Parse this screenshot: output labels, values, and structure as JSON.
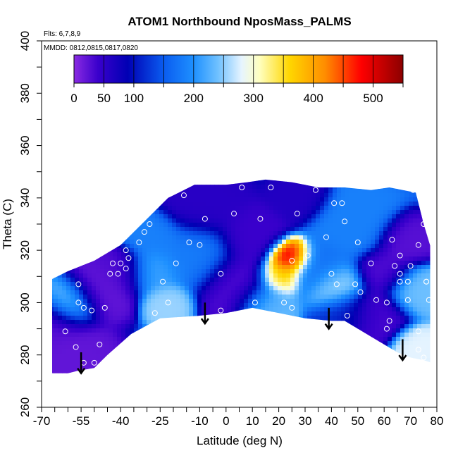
{
  "chart_data": {
    "type": "heatmap",
    "title": "ATOM1 Northbound NposMass_PALMS",
    "annotations": {
      "flights": "Flts: 6,7,8,9",
      "dates": "MMDD: 0812,0815,0817,0820"
    },
    "xlabel": "Latitude (deg N)",
    "ylabel": "Theta (C)",
    "xlim": [
      -70,
      80
    ],
    "ylim": [
      260,
      400
    ],
    "x_ticks": [
      -70,
      -55,
      -40,
      -25,
      -10,
      0,
      10,
      20,
      30,
      40,
      50,
      60,
      70,
      80
    ],
    "x_tick_labels": [
      "-70",
      "-55",
      "-40",
      "-25",
      "-10",
      "0",
      "10",
      "20",
      "30",
      "40",
      "50",
      "60",
      "70",
      "80"
    ],
    "y_ticks": [
      260,
      280,
      300,
      320,
      340,
      360,
      380,
      400
    ],
    "y_tick_labels": [
      "260",
      "280",
      "300",
      "320",
      "340",
      "360",
      "380",
      "400"
    ],
    "colorbar": {
      "range": [
        0,
        550
      ],
      "ticks": [
        0,
        50,
        100,
        200,
        300,
        400,
        500
      ],
      "tick_labels": [
        "0",
        "50",
        "100",
        "200",
        "300",
        "400",
        "500"
      ],
      "color_stops": [
        {
          "value": 0,
          "color": "#8a2be2"
        },
        {
          "value": 40,
          "color": "#3a00cc"
        },
        {
          "value": 90,
          "color": "#0000b4"
        },
        {
          "value": 150,
          "color": "#0a5cf0"
        },
        {
          "value": 200,
          "color": "#1e90ff"
        },
        {
          "value": 240,
          "color": "#6ec0ff"
        },
        {
          "value": 280,
          "color": "#e6f4ff"
        },
        {
          "value": 310,
          "color": "#ffffc0"
        },
        {
          "value": 360,
          "color": "#ffd700"
        },
        {
          "value": 420,
          "color": "#ff8c00"
        },
        {
          "value": 480,
          "color": "#ff0000"
        },
        {
          "value": 550,
          "color": "#8b0000"
        }
      ]
    },
    "domain": {
      "lower": [
        [
          -66,
          273
        ],
        [
          -60,
          273
        ],
        [
          -56,
          274
        ],
        [
          -50,
          275
        ],
        [
          -45,
          280
        ],
        [
          -36,
          288
        ],
        [
          -25,
          294
        ],
        [
          -10,
          295
        ],
        [
          0,
          296
        ],
        [
          10,
          298
        ],
        [
          20,
          296
        ],
        [
          30,
          294
        ],
        [
          40,
          293
        ],
        [
          45,
          293
        ],
        [
          55,
          287
        ],
        [
          65,
          281
        ],
        [
          70,
          279
        ],
        [
          75,
          278
        ],
        [
          78,
          277
        ]
      ],
      "upper": [
        [
          -66,
          309
        ],
        [
          -60,
          312
        ],
        [
          -50,
          316
        ],
        [
          -40,
          322
        ],
        [
          -30,
          332
        ],
        [
          -22,
          340
        ],
        [
          -12,
          345
        ],
        [
          0,
          345
        ],
        [
          8,
          346
        ],
        [
          15,
          347
        ],
        [
          25,
          346
        ],
        [
          35,
          344
        ],
        [
          45,
          344
        ],
        [
          55,
          343
        ],
        [
          62,
          344
        ],
        [
          72,
          342
        ],
        [
          75,
          330
        ],
        [
          78,
          320
        ],
        [
          79,
          305
        ]
      ]
    },
    "hotspots": [
      {
        "lat": -60,
        "theta": 300,
        "value": 250,
        "radius": 5
      },
      {
        "lat": -66,
        "theta": 292,
        "value": 25,
        "radius": 6
      },
      {
        "lat": -58,
        "theta": 278,
        "value": 20,
        "radius": 7
      },
      {
        "lat": -48,
        "theta": 305,
        "value": 20,
        "radius": 6
      },
      {
        "lat": -40,
        "theta": 312,
        "value": 30,
        "radius": 5
      },
      {
        "lat": -28,
        "theta": 312,
        "value": 215,
        "radius": 5
      },
      {
        "lat": -22,
        "theta": 300,
        "value": 255,
        "radius": 4
      },
      {
        "lat": -28,
        "theta": 325,
        "value": 185,
        "radius": 5
      },
      {
        "lat": -12,
        "theta": 318,
        "value": 180,
        "radius": 7
      },
      {
        "lat": -8,
        "theta": 337,
        "value": 55,
        "radius": 7
      },
      {
        "lat": 5,
        "theta": 307,
        "value": 30,
        "radius": 7
      },
      {
        "lat": 10,
        "theta": 325,
        "value": 40,
        "radius": 6
      },
      {
        "lat": 24,
        "theta": 317,
        "value": 520,
        "radius": 4
      },
      {
        "lat": 20,
        "theta": 310,
        "value": 380,
        "radius": 4
      },
      {
        "lat": 15,
        "theta": 300,
        "value": 240,
        "radius": 5
      },
      {
        "lat": 28,
        "theta": 340,
        "value": 60,
        "radius": 5
      },
      {
        "lat": 35,
        "theta": 313,
        "value": 170,
        "radius": 6
      },
      {
        "lat": 42,
        "theta": 306,
        "value": 265,
        "radius": 5
      },
      {
        "lat": 48,
        "theta": 330,
        "value": 185,
        "radius": 7
      },
      {
        "lat": 55,
        "theta": 295,
        "value": 35,
        "radius": 6
      },
      {
        "lat": 60,
        "theta": 312,
        "value": 30,
        "radius": 5
      },
      {
        "lat": 72,
        "theta": 305,
        "value": 240,
        "radius": 5
      },
      {
        "lat": 72,
        "theta": 283,
        "value": 280,
        "radius": 4
      },
      {
        "lat": 68,
        "theta": 323,
        "value": 25,
        "radius": 5
      },
      {
        "lat": 45,
        "theta": 296,
        "value": 120,
        "radius": 5
      }
    ],
    "sample_points": [
      [
        -68,
        309
      ],
      [
        -69,
        297
      ],
      [
        -69,
        288
      ],
      [
        -67,
        273
      ],
      [
        -61,
        289
      ],
      [
        -56,
        307
      ],
      [
        -56,
        300
      ],
      [
        -54,
        298
      ],
      [
        -57,
        283
      ],
      [
        -54,
        277
      ],
      [
        -50,
        277
      ],
      [
        -48,
        284
      ],
      [
        -51,
        297
      ],
      [
        -46,
        298
      ],
      [
        -44,
        311
      ],
      [
        -43,
        315
      ],
      [
        -41,
        311
      ],
      [
        -40,
        315
      ],
      [
        -38,
        313
      ],
      [
        -37,
        317
      ],
      [
        -38,
        320
      ],
      [
        -33,
        323
      ],
      [
        -31,
        327
      ],
      [
        -29,
        330
      ],
      [
        -24,
        308
      ],
      [
        -23,
        291
      ],
      [
        -27,
        296
      ],
      [
        -22,
        300
      ],
      [
        -19,
        315
      ],
      [
        -16,
        341
      ],
      [
        -14,
        323
      ],
      [
        -10,
        322
      ],
      [
        -8,
        332
      ],
      [
        -2,
        297
      ],
      [
        -2,
        311
      ],
      [
        3,
        334
      ],
      [
        6,
        344
      ],
      [
        11,
        300
      ],
      [
        13,
        332
      ],
      [
        17,
        344
      ],
      [
        22,
        348
      ],
      [
        26,
        347
      ],
      [
        34,
        343
      ],
      [
        22,
        300
      ],
      [
        25,
        298
      ],
      [
        25,
        316
      ],
      [
        27,
        334
      ],
      [
        38,
        325
      ],
      [
        41,
        338
      ],
      [
        45,
        331
      ],
      [
        49,
        307
      ],
      [
        46,
        295
      ],
      [
        42,
        307
      ],
      [
        40,
        311
      ],
      [
        55,
        315
      ],
      [
        57,
        301
      ],
      [
        61,
        300
      ],
      [
        62,
        293
      ],
      [
        64,
        314
      ],
      [
        66,
        318
      ],
      [
        66,
        311
      ],
      [
        69,
        308
      ],
      [
        69,
        301
      ],
      [
        70,
        314
      ],
      [
        71,
        343
      ],
      [
        73,
        322
      ],
      [
        75,
        330
      ],
      [
        76,
        308
      ],
      [
        76,
        308
      ],
      [
        77,
        301
      ],
      [
        73,
        289
      ],
      [
        75,
        279
      ],
      [
        73,
        282
      ],
      [
        44,
        338
      ],
      [
        50,
        323
      ],
      [
        31,
        318
      ],
      [
        63,
        324
      ],
      [
        51,
        304
      ],
      [
        61,
        290
      ],
      [
        66,
        308
      ]
    ],
    "arrows": [
      {
        "lat": -55,
        "theta_top": 281,
        "theta_tip": 273
      },
      {
        "lat": -8,
        "theta_top": 300,
        "theta_tip": 292
      },
      {
        "lat": 39,
        "theta_top": 298,
        "theta_tip": 290
      },
      {
        "lat": 67,
        "theta_top": 286,
        "theta_tip": 278
      }
    ]
  }
}
